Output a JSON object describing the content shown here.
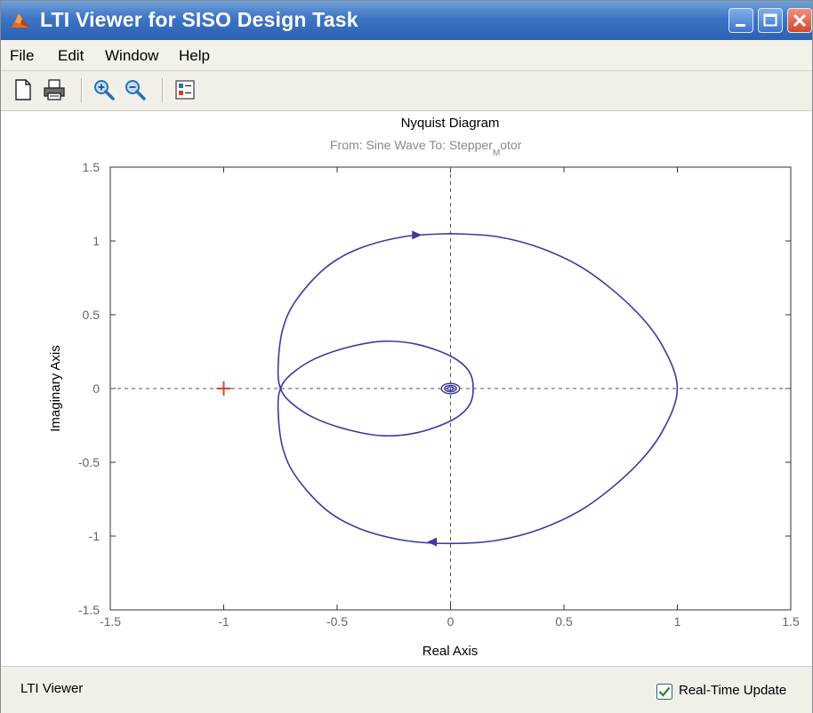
{
  "window": {
    "title": "LTI Viewer for SISO Design Task"
  },
  "menu": {
    "items": [
      "File",
      "Edit",
      "Window",
      "Help"
    ]
  },
  "toolbar": {
    "buttons": [
      "new-figure-icon",
      "print-icon",
      "zoom-in-icon",
      "zoom-out-icon",
      "plot-configuration-icon"
    ]
  },
  "status": {
    "text": "LTI Viewer",
    "realtime_label": "Real-Time Update",
    "realtime_checked": true
  },
  "chart_data": {
    "type": "line",
    "title": "Nyquist Diagram",
    "subtitle": "From: Sine Wave  To: Stepper",
    "subtitle_tail": "otor",
    "xlabel": "Real Axis",
    "ylabel": "Imaginary Axis",
    "xlim": [
      -1.5,
      1.5
    ],
    "ylim": [
      -1.5,
      1.5
    ],
    "x_ticks": [
      "-1.5",
      "-1",
      "-0.5",
      "0",
      "0.5",
      "1",
      "1.5"
    ],
    "y_ticks": [
      "1.5",
      "1",
      "0.5",
      "0",
      "-0.5",
      "-1",
      "-1.5"
    ],
    "critical_point": {
      "x": -1,
      "y": 0,
      "color": "#e0402a"
    },
    "line_color": "#3a3aa0",
    "grid": false,
    "series": [
      {
        "points": [
          [
            0,
            1.05
          ],
          [
            0.2,
            1.03
          ],
          [
            0.4,
            0.95
          ],
          [
            0.6,
            0.8
          ],
          [
            0.8,
            0.55
          ],
          [
            0.93,
            0.3
          ],
          [
            1.0,
            0
          ],
          [
            0.93,
            -0.3
          ],
          [
            0.8,
            -0.55
          ],
          [
            0.6,
            -0.8
          ],
          [
            0.4,
            -0.95
          ],
          [
            0.2,
            -1.03
          ],
          [
            0,
            -1.05
          ],
          [
            -0.2,
            -1.03
          ],
          [
            -0.4,
            -0.95
          ],
          [
            -0.55,
            -0.82
          ],
          [
            -0.68,
            -0.6
          ],
          [
            -0.74,
            -0.4
          ],
          [
            -0.76,
            -0.15
          ],
          [
            -0.75,
            0
          ],
          [
            -0.7,
            0.1
          ],
          [
            -0.6,
            0.2
          ],
          [
            -0.45,
            0.28
          ],
          [
            -0.3,
            0.32
          ],
          [
            -0.15,
            0.3
          ],
          [
            0,
            0.22
          ],
          [
            0.08,
            0.12
          ],
          [
            0.1,
            0
          ],
          [
            0.08,
            -0.12
          ],
          [
            0,
            -0.22
          ],
          [
            -0.15,
            -0.3
          ],
          [
            -0.3,
            -0.32
          ],
          [
            -0.45,
            -0.28
          ],
          [
            -0.6,
            -0.2
          ],
          [
            -0.7,
            -0.1
          ],
          [
            -0.75,
            0
          ],
          [
            -0.76,
            0.15
          ],
          [
            -0.74,
            0.4
          ],
          [
            -0.68,
            0.6
          ],
          [
            -0.55,
            0.82
          ],
          [
            -0.4,
            0.95
          ],
          [
            -0.2,
            1.03
          ],
          [
            0,
            1.05
          ]
        ]
      }
    ],
    "arrows": [
      {
        "x": -0.15,
        "y": 1.04,
        "direction": "right"
      },
      {
        "x": -0.08,
        "y": -1.04,
        "direction": "left"
      }
    ]
  }
}
